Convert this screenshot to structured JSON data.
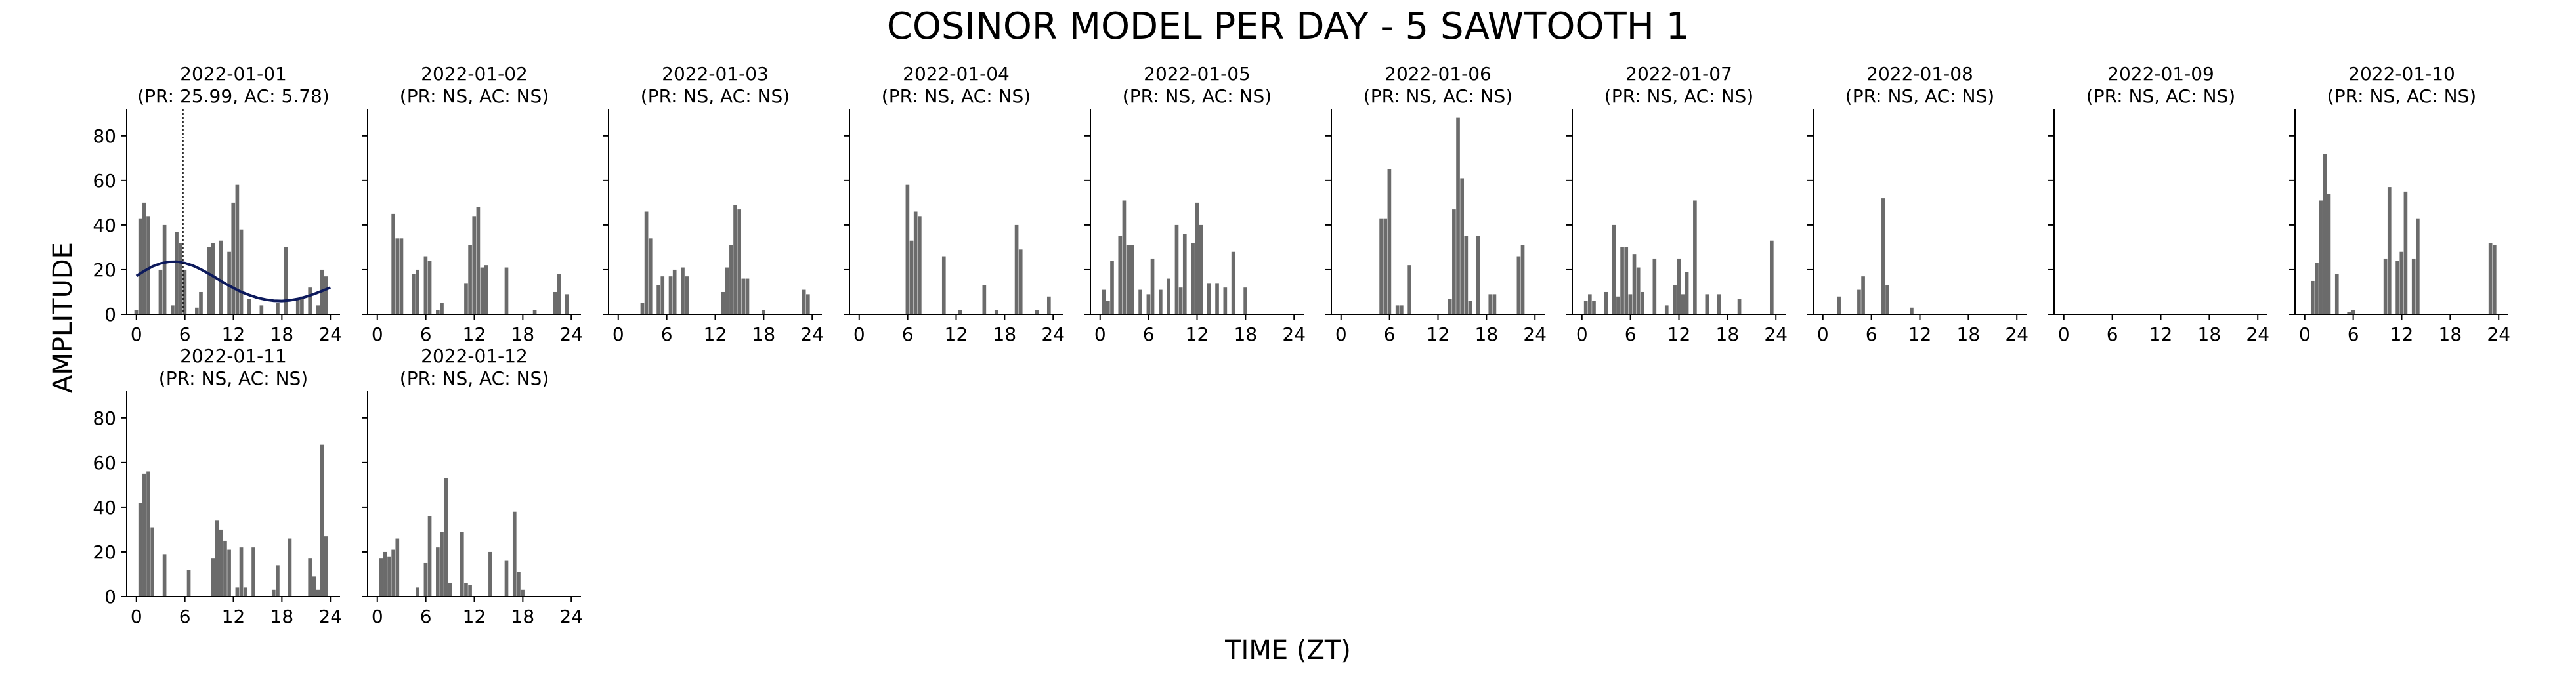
{
  "figure": {
    "title": "COSINOR MODEL PER DAY - 5 SAWTOOTH 1",
    "ylabel": "AMPLITUDE",
    "xlabel": "TIME (ZT)"
  },
  "colors": {
    "bar": "#6b6b6b",
    "fit": "#0d1a5c",
    "axis": "#000000"
  },
  "chart_data": [
    {
      "type": "bar",
      "date": "2022-01-01",
      "stats": "(PR: 25.99, AC: 5.78)",
      "x": [
        0,
        0.5,
        1,
        1.5,
        2,
        2.5,
        3,
        3.5,
        4,
        4.5,
        5,
        5.5,
        6,
        6.5,
        7,
        7.5,
        8,
        8.5,
        9,
        9.5,
        10,
        10.5,
        11,
        11.5,
        12,
        12.5,
        13,
        13.5,
        14,
        14.5,
        15,
        15.5,
        16,
        16.5,
        17,
        17.5,
        18,
        18.5,
        19,
        19.5,
        20,
        20.5,
        21,
        21.5,
        22,
        22.5,
        23,
        23.5
      ],
      "values": [
        2,
        43,
        50,
        44,
        0,
        0,
        20,
        40,
        0,
        4,
        37,
        32,
        20,
        0,
        0,
        3,
        10,
        0,
        30,
        32,
        0,
        33,
        0,
        28,
        50,
        58,
        38,
        0,
        7,
        0,
        0,
        4,
        0,
        0,
        0,
        5,
        0,
        30,
        0,
        0,
        7,
        8,
        0,
        12,
        0,
        4,
        20,
        17
      ],
      "fit": {
        "x": [
          0,
          1,
          2,
          3,
          4,
          5,
          6,
          7,
          8,
          9,
          10,
          11,
          12,
          13,
          14,
          15,
          16,
          17,
          18,
          19,
          20,
          21,
          22,
          23,
          24
        ],
        "y": [
          17.2,
          19.5,
          21.5,
          22.8,
          23.5,
          23.6,
          23.0,
          21.8,
          20.1,
          18.1,
          16.0,
          13.8,
          11.8,
          10.0,
          8.6,
          7.4,
          6.6,
          6.1,
          6.0,
          6.3,
          6.9,
          7.9,
          9.1,
          10.5,
          12.0
        ]
      },
      "acrophase": 5.78,
      "ylim": [
        0,
        92
      ],
      "yticks": [
        0,
        20,
        40,
        60,
        80
      ],
      "xticks": [
        0,
        6,
        12,
        18,
        24
      ]
    },
    {
      "type": "bar",
      "date": "2022-01-02",
      "stats": "(PR: NS, AC: NS)",
      "x": [
        0,
        0.5,
        1,
        1.5,
        2,
        2.5,
        3,
        3.5,
        4,
        4.5,
        5,
        5.5,
        6,
        6.5,
        7,
        7.5,
        8,
        8.5,
        9,
        9.5,
        10,
        10.5,
        11,
        11.5,
        12,
        12.5,
        13,
        13.5,
        14,
        14.5,
        15,
        15.5,
        16,
        16.5,
        17,
        17.5,
        18,
        18.5,
        19,
        19.5,
        20,
        20.5,
        21,
        21.5,
        22,
        22.5,
        23,
        23.5
      ],
      "values": [
        0,
        0,
        0,
        0,
        45,
        34,
        34,
        0,
        0,
        18,
        20,
        0,
        26,
        24,
        0,
        2,
        5,
        0,
        0,
        0,
        0,
        0,
        14,
        31,
        44,
        48,
        21,
        22,
        0,
        0,
        0,
        0,
        21,
        0,
        0,
        0,
        0,
        0,
        0,
        2,
        0,
        0,
        0,
        0,
        10,
        18,
        0,
        9
      ],
      "ylim": [
        0,
        92
      ],
      "xticks": [
        0,
        6,
        12,
        18,
        24
      ]
    },
    {
      "type": "bar",
      "date": "2022-01-03",
      "stats": "(PR: NS, AC: NS)",
      "x": [
        0,
        0.5,
        1,
        1.5,
        2,
        2.5,
        3,
        3.5,
        4,
        4.5,
        5,
        5.5,
        6,
        6.5,
        7,
        7.5,
        8,
        8.5,
        9,
        9.5,
        10,
        10.5,
        11,
        11.5,
        12,
        12.5,
        13,
        13.5,
        14,
        14.5,
        15,
        15.5,
        16,
        16.5,
        17,
        17.5,
        18,
        18.5,
        19,
        19.5,
        20,
        20.5,
        21,
        21.5,
        22,
        22.5,
        23,
        23.5
      ],
      "values": [
        0,
        0,
        0,
        0,
        0,
        0,
        5,
        46,
        34,
        0,
        13,
        17,
        0,
        17,
        20,
        0,
        21,
        17,
        0,
        0,
        0,
        0,
        0,
        0,
        0,
        0,
        10,
        21,
        31,
        49,
        47,
        16,
        16,
        0,
        0,
        0,
        2,
        0,
        0,
        0,
        0,
        0,
        0,
        0,
        0,
        0,
        11,
        9
      ],
      "ylim": [
        0,
        92
      ],
      "xticks": [
        0,
        6,
        12,
        18,
        24
      ]
    },
    {
      "type": "bar",
      "date": "2022-01-04",
      "stats": "(PR: NS, AC: NS)",
      "x": [
        0,
        0.5,
        1,
        1.5,
        2,
        2.5,
        3,
        3.5,
        4,
        4.5,
        5,
        5.5,
        6,
        6.5,
        7,
        7.5,
        8,
        8.5,
        9,
        9.5,
        10,
        10.5,
        11,
        11.5,
        12,
        12.5,
        13,
        13.5,
        14,
        14.5,
        15,
        15.5,
        16,
        16.5,
        17,
        17.5,
        18,
        18.5,
        19,
        19.5,
        20,
        20.5,
        21,
        21.5,
        22,
        22.5,
        23,
        23.5
      ],
      "values": [
        0,
        0,
        0,
        0,
        0,
        0,
        0,
        0,
        0,
        0,
        0,
        0,
        58,
        33,
        46,
        44,
        0,
        0,
        0,
        0,
        0,
        26,
        0,
        0,
        0,
        2,
        0,
        0,
        0,
        0,
        0,
        13,
        0,
        0,
        2,
        0,
        0,
        0,
        0,
        40,
        29,
        0,
        0,
        0,
        2,
        0,
        0,
        8
      ],
      "ylim": [
        0,
        92
      ],
      "xticks": [
        0,
        6,
        12,
        18,
        24
      ]
    },
    {
      "type": "bar",
      "date": "2022-01-05",
      "stats": "(PR: NS, AC: NS)",
      "x": [
        0,
        0.5,
        1,
        1.5,
        2,
        2.5,
        3,
        3.5,
        4,
        4.5,
        5,
        5.5,
        6,
        6.5,
        7,
        7.5,
        8,
        8.5,
        9,
        9.5,
        10,
        10.5,
        11,
        11.5,
        12,
        12.5,
        13,
        13.5,
        14,
        14.5,
        15,
        15.5,
        16,
        16.5,
        17,
        17.5,
        18,
        18.5,
        19,
        19.5,
        20,
        20.5,
        21,
        21.5,
        22,
        22.5,
        23,
        23.5
      ],
      "values": [
        0,
        11,
        6,
        24,
        0,
        35,
        51,
        31,
        31,
        0,
        11,
        0,
        9,
        25,
        0,
        11,
        0,
        16,
        0,
        40,
        12,
        36,
        0,
        32,
        50,
        40,
        0,
        14,
        0,
        14,
        0,
        12,
        0,
        28,
        0,
        0,
        12,
        0,
        0,
        0,
        0,
        0,
        0,
        0,
        0,
        0,
        0,
        0
      ],
      "ylim": [
        0,
        92
      ],
      "xticks": [
        0,
        6,
        12,
        18,
        24
      ]
    },
    {
      "type": "bar",
      "date": "2022-01-06",
      "stats": "(PR: NS, AC: NS)",
      "x": [
        0,
        0.5,
        1,
        1.5,
        2,
        2.5,
        3,
        3.5,
        4,
        4.5,
        5,
        5.5,
        6,
        6.5,
        7,
        7.5,
        8,
        8.5,
        9,
        9.5,
        10,
        10.5,
        11,
        11.5,
        12,
        12.5,
        13,
        13.5,
        14,
        14.5,
        15,
        15.5,
        16,
        16.5,
        17,
        17.5,
        18,
        18.5,
        19,
        19.5,
        20,
        20.5,
        21,
        21.5,
        22,
        22.5,
        23,
        23.5
      ],
      "values": [
        0,
        0,
        0,
        0,
        0,
        0,
        0,
        0,
        0,
        0,
        43,
        43,
        65,
        0,
        4,
        4,
        0,
        22,
        0,
        0,
        0,
        0,
        0,
        0,
        0,
        0,
        0,
        7,
        47,
        88,
        61,
        35,
        6,
        0,
        35,
        0,
        0,
        9,
        9,
        0,
        0,
        0,
        0,
        0,
        26,
        31,
        0,
        0
      ],
      "ylim": [
        0,
        92
      ],
      "xticks": [
        0,
        6,
        12,
        18,
        24
      ]
    },
    {
      "type": "bar",
      "date": "2022-01-07",
      "stats": "(PR: NS, AC: NS)",
      "x": [
        0,
        0.5,
        1,
        1.5,
        2,
        2.5,
        3,
        3.5,
        4,
        4.5,
        5,
        5.5,
        6,
        6.5,
        7,
        7.5,
        8,
        8.5,
        9,
        9.5,
        10,
        10.5,
        11,
        11.5,
        12,
        12.5,
        13,
        13.5,
        14,
        14.5,
        15,
        15.5,
        16,
        16.5,
        17,
        17.5,
        18,
        18.5,
        19,
        19.5,
        20,
        20.5,
        21,
        21.5,
        22,
        22.5,
        23,
        23.5
      ],
      "values": [
        0,
        6,
        9,
        6,
        0,
        0,
        10,
        0,
        40,
        8,
        30,
        30,
        9,
        27,
        21,
        10,
        0,
        0,
        25,
        0,
        0,
        4,
        0,
        13,
        25,
        9,
        19,
        0,
        51,
        0,
        0,
        9,
        0,
        0,
        9,
        0,
        0,
        0,
        0,
        7,
        0,
        0,
        0,
        0,
        0,
        0,
        0,
        33
      ],
      "ylim": [
        0,
        92
      ],
      "xticks": [
        0,
        6,
        12,
        18,
        24
      ]
    },
    {
      "type": "bar",
      "date": "2022-01-08",
      "stats": "(PR: NS, AC: NS)",
      "x": [
        0,
        0.5,
        1,
        1.5,
        2,
        2.5,
        3,
        3.5,
        4,
        4.5,
        5,
        5.5,
        6,
        6.5,
        7,
        7.5,
        8,
        8.5,
        9,
        9.5,
        10,
        10.5,
        11,
        11.5,
        12,
        12.5,
        13,
        13.5,
        14,
        14.5,
        15,
        15.5,
        16,
        16.5,
        17,
        17.5,
        18,
        18.5,
        19,
        19.5,
        20,
        20.5,
        21,
        21.5,
        22,
        22.5,
        23,
        23.5
      ],
      "values": [
        0,
        0,
        0,
        0,
        8,
        0,
        0,
        0,
        0,
        11,
        17,
        0,
        0,
        0,
        0,
        52,
        13,
        0,
        0,
        0,
        0,
        0,
        3,
        0,
        0,
        0,
        0,
        0,
        0,
        0,
        0,
        0,
        0,
        0,
        0,
        0,
        0,
        0,
        0,
        0,
        0,
        0,
        0,
        0,
        0,
        0,
        0,
        0
      ],
      "ylim": [
        0,
        92
      ],
      "xticks": [
        0,
        6,
        12,
        18,
        24
      ]
    },
    {
      "type": "bar",
      "date": "2022-01-09",
      "stats": "(PR: NS, AC: NS)",
      "x": [
        0,
        0.5,
        1,
        1.5,
        2,
        2.5,
        3,
        3.5,
        4,
        4.5,
        5,
        5.5,
        6,
        6.5,
        7,
        7.5,
        8,
        8.5,
        9,
        9.5,
        10,
        10.5,
        11,
        11.5,
        12,
        12.5,
        13,
        13.5,
        14,
        14.5,
        15,
        15.5,
        16,
        16.5,
        17,
        17.5,
        18,
        18.5,
        19,
        19.5,
        20,
        20.5,
        21,
        21.5,
        22,
        22.5,
        23,
        23.5
      ],
      "values": [
        0,
        0,
        0,
        0,
        0,
        0,
        0,
        0,
        0,
        0,
        0,
        0,
        0,
        0,
        0,
        0,
        0,
        0,
        0,
        0,
        0,
        0,
        0,
        0,
        0,
        0,
        0,
        0,
        0,
        0,
        0,
        0,
        0,
        0,
        0,
        0,
        0,
        0,
        0,
        0,
        0,
        0,
        0,
        0,
        0,
        0,
        0,
        0
      ],
      "ylim": [
        0,
        92
      ],
      "xticks": [
        0,
        6,
        12,
        18,
        24
      ]
    },
    {
      "type": "bar",
      "date": "2022-01-10",
      "stats": "(PR: NS, AC: NS)",
      "x": [
        0,
        0.5,
        1,
        1.5,
        2,
        2.5,
        3,
        3.5,
        4,
        4.5,
        5,
        5.5,
        6,
        6.5,
        7,
        7.5,
        8,
        8.5,
        9,
        9.5,
        10,
        10.5,
        11,
        11.5,
        12,
        12.5,
        13,
        13.5,
        14,
        14.5,
        15,
        15.5,
        16,
        16.5,
        17,
        17.5,
        18,
        18.5,
        19,
        19.5,
        20,
        20.5,
        21,
        21.5,
        22,
        22.5,
        23,
        23.5
      ],
      "values": [
        0,
        0,
        15,
        23,
        51,
        72,
        54,
        0,
        18,
        0,
        0,
        1,
        2,
        0,
        0,
        0,
        0,
        0,
        0,
        0,
        25,
        57,
        0,
        24,
        28,
        55,
        0,
        25,
        43,
        0,
        0,
        0,
        0,
        0,
        0,
        0,
        0,
        0,
        0,
        0,
        0,
        0,
        0,
        0,
        0,
        0,
        32,
        31
      ],
      "ylim": [
        0,
        92
      ],
      "xticks": [
        0,
        6,
        12,
        18,
        24
      ]
    },
    {
      "type": "bar",
      "date": "2022-01-11",
      "stats": "(PR: NS, AC: NS)",
      "x": [
        0,
        0.5,
        1,
        1.5,
        2,
        2.5,
        3,
        3.5,
        4,
        4.5,
        5,
        5.5,
        6,
        6.5,
        7,
        7.5,
        8,
        8.5,
        9,
        9.5,
        10,
        10.5,
        11,
        11.5,
        12,
        12.5,
        13,
        13.5,
        14,
        14.5,
        15,
        15.5,
        16,
        16.5,
        17,
        17.5,
        18,
        18.5,
        19,
        19.5,
        20,
        20.5,
        21,
        21.5,
        22,
        22.5,
        23,
        23.5
      ],
      "values": [
        0,
        42,
        55,
        56,
        31,
        0,
        0,
        19,
        0,
        0,
        0,
        0,
        0,
        12,
        0,
        0,
        0,
        0,
        0,
        17,
        34,
        30,
        25,
        21,
        0,
        4,
        22,
        4,
        0,
        22,
        0,
        0,
        0,
        0,
        3,
        14,
        0,
        0,
        26,
        0,
        0,
        0,
        0,
        17,
        9,
        3,
        68,
        27
      ],
      "ylim": [
        0,
        92
      ],
      "xticks": [
        0,
        6,
        12,
        18,
        24
      ]
    },
    {
      "type": "bar",
      "date": "2022-01-12",
      "stats": "(PR: NS, AC: NS)",
      "x": [
        0,
        0.5,
        1,
        1.5,
        2,
        2.5,
        3,
        3.5,
        4,
        4.5,
        5,
        5.5,
        6,
        6.5,
        7,
        7.5,
        8,
        8.5,
        9,
        9.5,
        10,
        10.5,
        11,
        11.5,
        12,
        12.5,
        13,
        13.5,
        14,
        14.5,
        15,
        15.5,
        16,
        16.5,
        17,
        17.5,
        18,
        18.5,
        19,
        19.5,
        20,
        20.5,
        21,
        21.5,
        22,
        22.5,
        23,
        23.5
      ],
      "values": [
        0,
        17,
        20,
        18,
        21,
        26,
        0,
        0,
        0,
        0,
        4,
        0,
        15,
        36,
        0,
        22,
        29,
        53,
        6,
        0,
        0,
        29,
        6,
        5,
        0,
        0,
        0,
        0,
        20,
        0,
        0,
        0,
        16,
        0,
        38,
        11,
        3,
        0,
        0,
        0,
        0,
        0,
        0,
        0,
        0,
        0,
        0,
        0
      ],
      "ylim": [
        0,
        92
      ],
      "xticks": [
        0,
        6,
        12,
        18,
        24
      ]
    }
  ]
}
